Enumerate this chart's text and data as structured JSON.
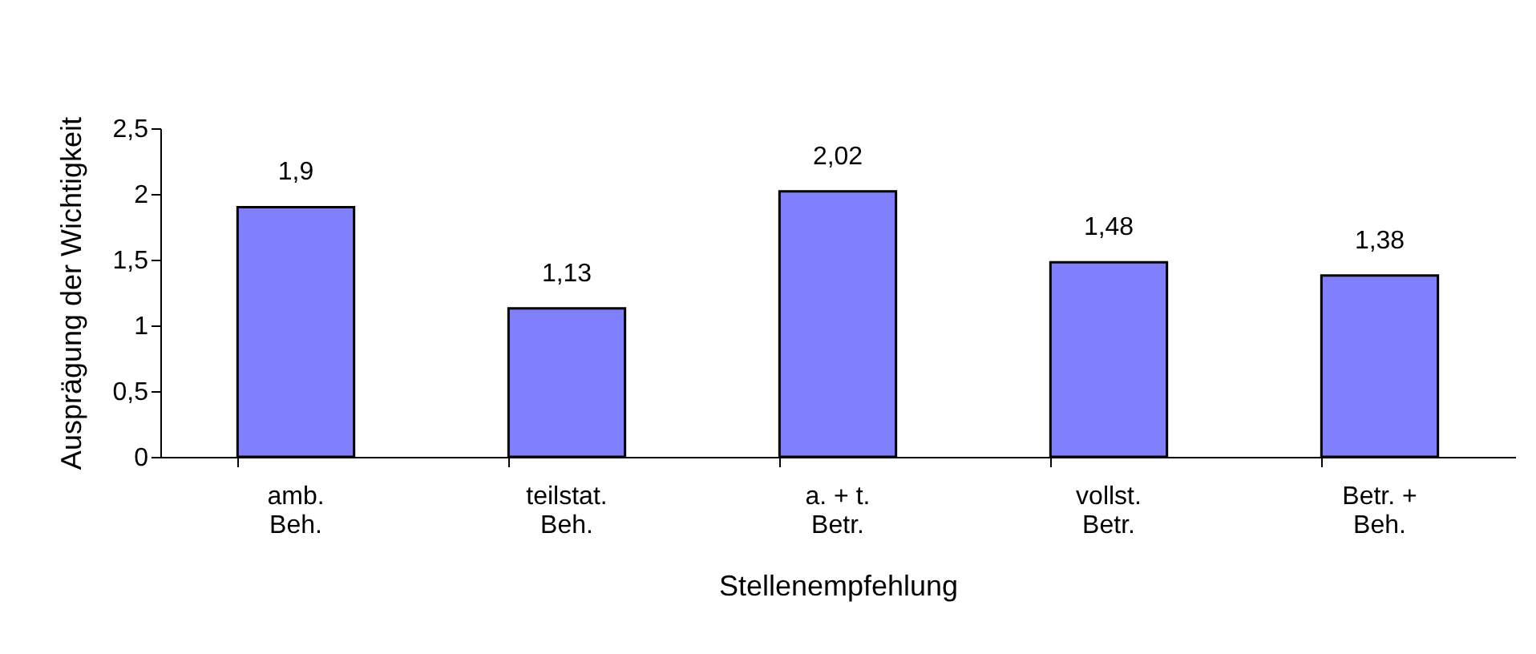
{
  "chart_data": {
    "type": "bar",
    "xlabel": "Stellenempfehlung",
    "ylabel": "Ausprägung der Wichtigkeit",
    "categories": [
      "amb.\nBeh.",
      "teilstat.\nBeh.",
      "a. + t.\nBetr.",
      "vollst.\nBetr.",
      "Betr. +\nBeh."
    ],
    "values": [
      1.9,
      1.13,
      2.02,
      1.48,
      1.38
    ],
    "value_labels": [
      "1,9",
      "1,13",
      "2,02",
      "1,48",
      "1,38"
    ],
    "color": "#8080ff",
    "ylim": [
      0,
      2.5
    ],
    "yticks": [
      0,
      {
        "value": 0.5,
        "label": "0,5"
      },
      1,
      {
        "value": 1.5,
        "label": "1,5"
      },
      2,
      {
        "value": 2.5,
        "label": "2,5"
      }
    ],
    "grid": false
  }
}
